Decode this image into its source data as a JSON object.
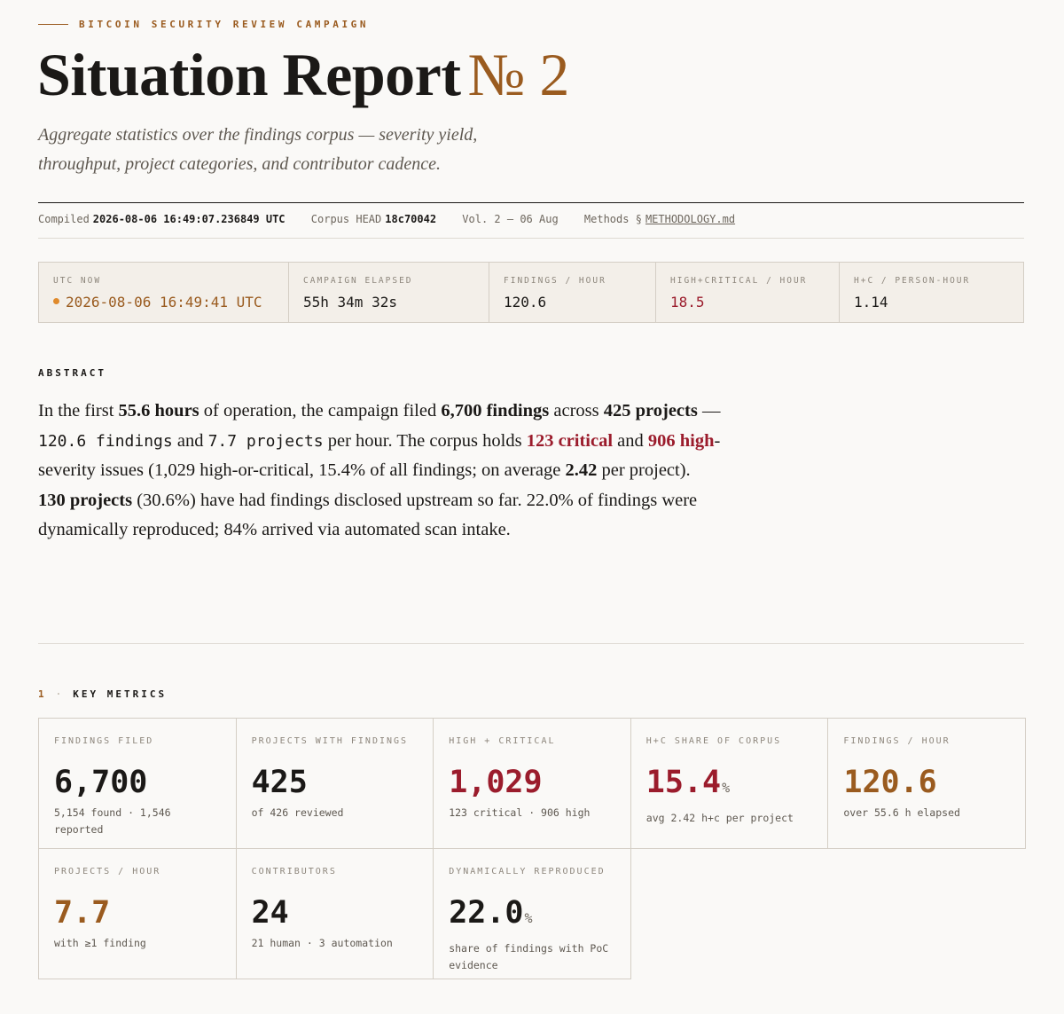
{
  "header": {
    "eyebrow": "BITCOIN SECURITY REVIEW CAMPAIGN",
    "title": "Situation Report",
    "title_number": "№ 2",
    "subtitle": "Aggregate statistics over the findings corpus — severity yield, throughput, project categories, and contributor cadence."
  },
  "meta": {
    "compiled_label": "Compiled",
    "compiled_value": "2026-08-06 16:49:07.236849 UTC",
    "head_label": "Corpus HEAD",
    "head_value": "18c70042",
    "volume": "Vol. 2 — 06 Aug",
    "methods_label": "Methods §",
    "methods_link": "METHODOLOGY.md"
  },
  "status": [
    {
      "label": "UTC NOW",
      "value": "2026-08-06 16:49:41 UTC",
      "tone": "live"
    },
    {
      "label": "CAMPAIGN ELAPSED",
      "value": "55h 34m 32s",
      "tone": "ink"
    },
    {
      "label": "FINDINGS / HOUR",
      "value": "120.6",
      "tone": "ink"
    },
    {
      "label": "HIGH+CRITICAL / HOUR",
      "value": "18.5",
      "tone": "red"
    },
    {
      "label": "H+C / PERSON-HOUR",
      "value": "1.14",
      "tone": "ink"
    }
  ],
  "abstract": {
    "heading": "ABSTRACT",
    "segments": [
      "In the first ",
      "55.6 hours",
      " of operation, the campaign filed ",
      "6,700 findings",
      " across ",
      "425 projects",
      " — ",
      "120.6 findings",
      " and ",
      "7.7 projects",
      " per hour. The corpus holds ",
      "123 critical",
      " and ",
      "906 high",
      "-severity issues (1,029 high-or-critical, 15.4% of all findings; on average ",
      "2.42",
      " per project). ",
      "130 projects",
      " (30.6%) have had findings disclosed upstream so far. 22.0% of findings were dynamically reproduced; 84% arrived via automated scan intake."
    ]
  },
  "section": {
    "number": "1",
    "separator": "·",
    "title": "KEY METRICS",
    "metrics": [
      {
        "label": "FINDINGS FILED",
        "value": "6,700",
        "note": "5,154 found · 1,546 reported",
        "tone": "ink"
      },
      {
        "label": "PROJECTS WITH FINDINGS",
        "value": "425",
        "note": "of 426 reviewed",
        "tone": "ink"
      },
      {
        "label": "HIGH + CRITICAL",
        "value": "1,029",
        "note": "123 critical · 906 high",
        "tone": "red"
      },
      {
        "label": "H+C SHARE OF CORPUS",
        "value": "15.4",
        "unit": "%",
        "note": "avg 2.42 h+c per project",
        "tone": "red"
      },
      {
        "label": "FINDINGS / HOUR",
        "value": "120.6",
        "note": "over 55.6 h elapsed",
        "tone": "brown"
      },
      {
        "label": "PROJECTS / HOUR",
        "value": "7.7",
        "note": "with ≥1 finding",
        "tone": "brown"
      },
      {
        "label": "CONTRIBUTORS",
        "value": "24",
        "note": "21 human · 3 automation",
        "tone": "ink"
      },
      {
        "label": "DYNAMICALLY REPRODUCED",
        "value": "22.0",
        "unit": "%",
        "note": "share of findings with PoC evidence",
        "tone": "ink"
      }
    ]
  }
}
